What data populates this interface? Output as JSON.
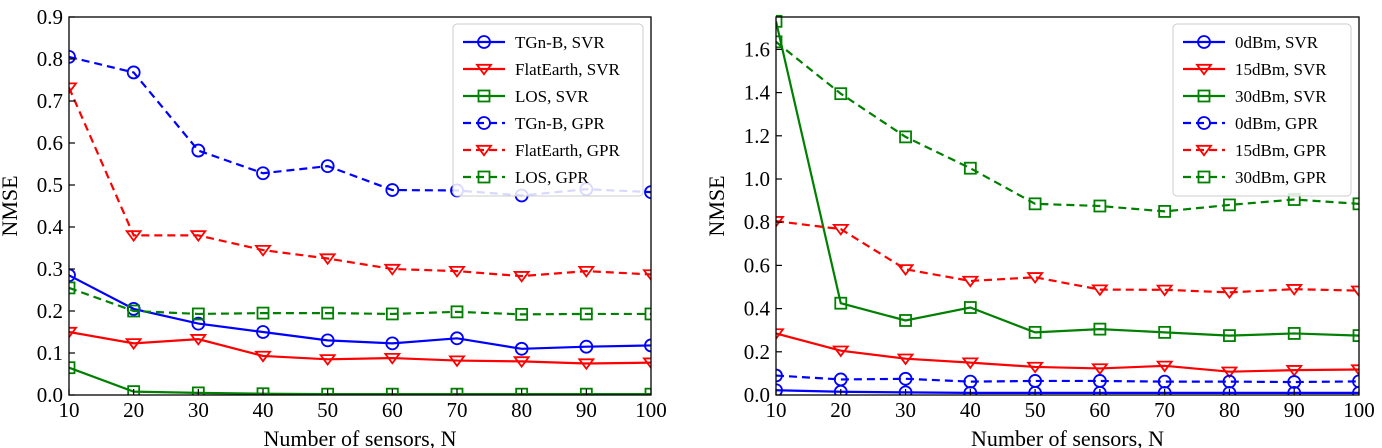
{
  "chart_data": [
    {
      "type": "line",
      "title": "",
      "xlabel": "Number of sensors, N",
      "ylabel": "NMSE",
      "x": [
        10,
        20,
        30,
        40,
        50,
        60,
        70,
        80,
        90,
        100
      ],
      "xlim": [
        10,
        100
      ],
      "ylim": [
        0,
        0.9
      ],
      "xticks": [
        "10",
        "20",
        "30",
        "40",
        "50",
        "60",
        "70",
        "80",
        "90",
        "100"
      ],
      "yticks": [
        "0.0",
        "0.1",
        "0.2",
        "0.3",
        "0.4",
        "0.5",
        "0.6",
        "0.7",
        "0.8",
        "0.9"
      ],
      "grid": false,
      "legend_position": "top-right",
      "series": [
        {
          "name": "TGn-B, SVR",
          "color": "#0000ff",
          "style": "solid",
          "marker": "circle",
          "values": [
            0.285,
            0.205,
            0.17,
            0.15,
            0.13,
            0.123,
            0.135,
            0.11,
            0.115,
            0.118
          ]
        },
        {
          "name": "FlatEarth, SVR",
          "color": "#ff0000",
          "style": "solid",
          "marker": "triangle-down",
          "values": [
            0.15,
            0.123,
            0.133,
            0.093,
            0.085,
            0.088,
            0.082,
            0.08,
            0.075,
            0.077
          ]
        },
        {
          "name": "LOS, SVR",
          "color": "#008000",
          "style": "solid",
          "marker": "square",
          "values": [
            0.065,
            0.008,
            0.005,
            0.003,
            0.002,
            0.002,
            0.002,
            0.002,
            0.002,
            0.002
          ]
        },
        {
          "name": "TGn-B, GPR",
          "color": "#0000ff",
          "style": "dashed",
          "marker": "circle",
          "values": [
            0.805,
            0.768,
            0.582,
            0.528,
            0.545,
            0.488,
            0.487,
            0.475,
            0.49,
            0.483
          ]
        },
        {
          "name": "FlatEarth, GPR",
          "color": "#ff0000",
          "style": "dashed",
          "marker": "triangle-down",
          "values": [
            0.732,
            0.38,
            0.38,
            0.345,
            0.325,
            0.3,
            0.295,
            0.283,
            0.295,
            0.287
          ]
        },
        {
          "name": "LOS, GPR",
          "color": "#008000",
          "style": "dashed",
          "marker": "square",
          "values": [
            0.255,
            0.2,
            0.193,
            0.195,
            0.195,
            0.193,
            0.198,
            0.192,
            0.193,
            0.193
          ]
        }
      ]
    },
    {
      "type": "line",
      "title": "",
      "xlabel": "Number of sensors, N",
      "ylabel": "NMSE",
      "x": [
        10,
        20,
        30,
        40,
        50,
        60,
        70,
        80,
        90,
        100
      ],
      "xlim": [
        10,
        100
      ],
      "ylim": [
        0,
        1.75
      ],
      "xticks": [
        "10",
        "20",
        "30",
        "40",
        "50",
        "60",
        "70",
        "80",
        "90",
        "100"
      ],
      "yticks": [
        "0.0",
        "0.2",
        "0.4",
        "0.6",
        "0.8",
        "1.0",
        "1.2",
        "1.4",
        "1.6"
      ],
      "grid": false,
      "legend_position": "top-right",
      "series": [
        {
          "name": "0dBm, SVR",
          "color": "#0000ff",
          "style": "solid",
          "marker": "circle",
          "values": [
            0.022,
            0.015,
            0.012,
            0.01,
            0.01,
            0.01,
            0.01,
            0.01,
            0.01,
            0.01
          ]
        },
        {
          "name": "15dBm, SVR",
          "color": "#ff0000",
          "style": "solid",
          "marker": "triangle-down",
          "values": [
            0.285,
            0.205,
            0.168,
            0.15,
            0.13,
            0.123,
            0.135,
            0.108,
            0.115,
            0.118
          ]
        },
        {
          "name": "30dBm, SVR",
          "color": "#008000",
          "style": "solid",
          "marker": "square",
          "values": [
            1.73,
            0.425,
            0.345,
            0.405,
            0.29,
            0.305,
            0.29,
            0.275,
            0.285,
            0.275
          ]
        },
        {
          "name": "0dBm, GPR",
          "color": "#0000ff",
          "style": "dashed",
          "marker": "circle",
          "values": [
            0.09,
            0.072,
            0.075,
            0.062,
            0.065,
            0.065,
            0.062,
            0.062,
            0.06,
            0.063
          ]
        },
        {
          "name": "15dBm, GPR",
          "color": "#ff0000",
          "style": "dashed",
          "marker": "triangle-down",
          "values": [
            0.805,
            0.768,
            0.582,
            0.528,
            0.545,
            0.488,
            0.487,
            0.475,
            0.49,
            0.483
          ]
        },
        {
          "name": "30dBm, GPR",
          "color": "#008000",
          "style": "dashed",
          "marker": "square",
          "values": [
            1.635,
            1.395,
            1.195,
            1.05,
            0.885,
            0.875,
            0.85,
            0.88,
            0.905,
            0.885
          ]
        }
      ]
    }
  ]
}
